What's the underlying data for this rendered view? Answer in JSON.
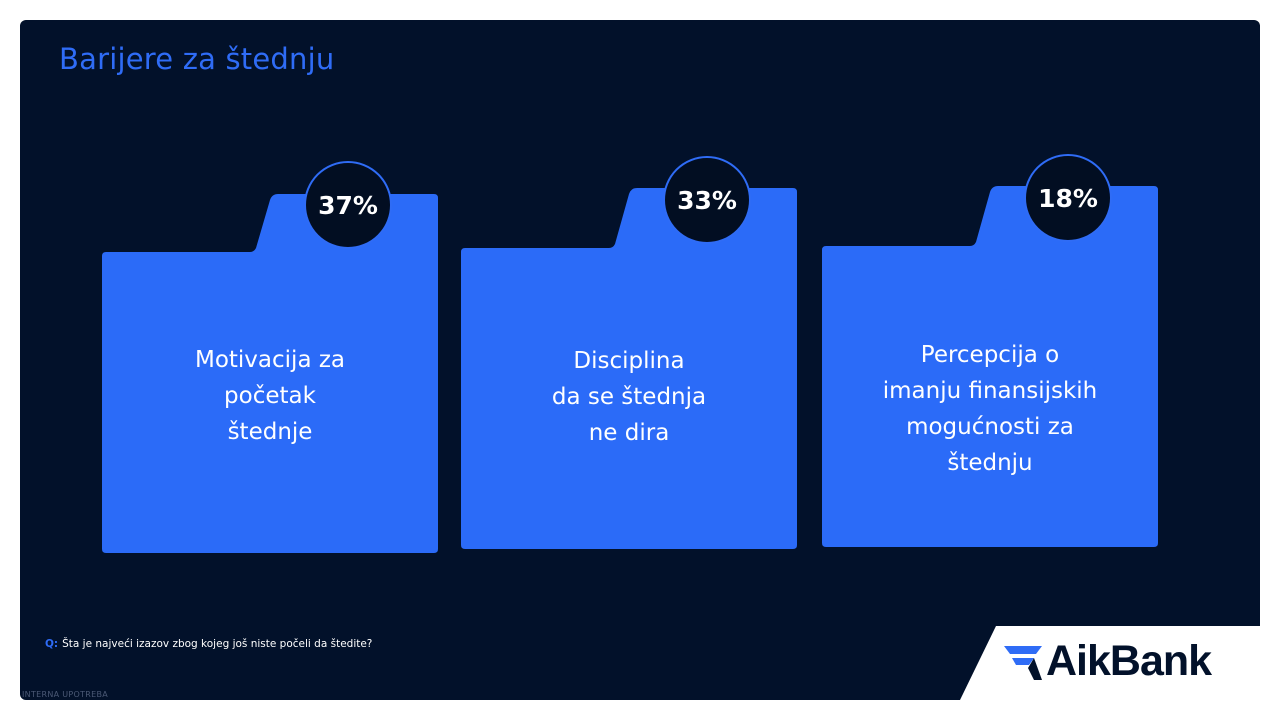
{
  "slide": {
    "title": "Barijere za štednju"
  },
  "cards": [
    {
      "percent": "37%",
      "value": 37,
      "label": "Motivacija za\npočetak\nštednje"
    },
    {
      "percent": "33%",
      "value": 33,
      "label": "Disciplina\nda se štednja\nne dira"
    },
    {
      "percent": "18%",
      "value": 18,
      "label": "Percepcija o\nimanju finansijskih\nmogućnosti za\nštednju"
    }
  ],
  "footer": {
    "question_prefix": "Q:",
    "question_text": "Šta je najveći izazov zbog kojeg još niste počeli da štedite?",
    "classification": "INTERNA UPOTREBA",
    "brand": "AikBank"
  },
  "colors": {
    "background": "#02112a",
    "accent": "#2f6cf6",
    "text": "#ffffff"
  }
}
